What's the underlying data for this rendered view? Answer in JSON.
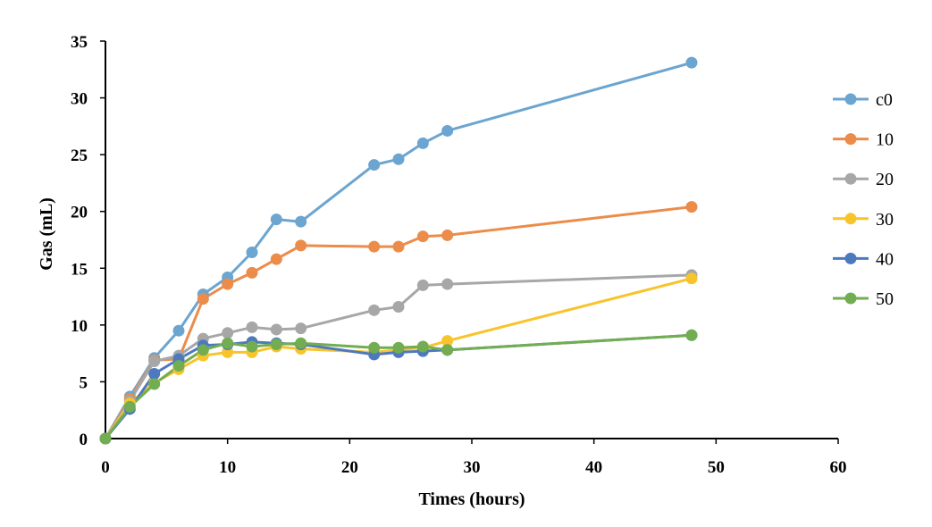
{
  "chart_data": {
    "type": "line",
    "title": "",
    "xlabel": "Times (hours)",
    "ylabel": "Gas (mL)",
    "xlim": [
      0,
      60
    ],
    "ylim": [
      0,
      35
    ],
    "xticks": [
      0,
      10,
      20,
      30,
      40,
      50,
      60
    ],
    "yticks": [
      0,
      5,
      10,
      15,
      20,
      25,
      30,
      35
    ],
    "xtick_labels": [
      "0",
      "10",
      "20",
      "30",
      "40",
      "50",
      "60"
    ],
    "ytick_labels": [
      "0",
      "5",
      "10",
      "15",
      "20",
      "25",
      "30",
      "35"
    ],
    "grid": false,
    "legend_position": "right",
    "x": [
      0,
      2,
      4,
      6,
      8,
      10,
      12,
      14,
      16,
      22,
      24,
      26,
      28,
      48
    ],
    "series": [
      {
        "name": "c0",
        "color": "#6BA5D0",
        "values": [
          0,
          3.7,
          7.1,
          9.5,
          12.7,
          14.2,
          16.4,
          19.3,
          19.1,
          24.1,
          24.6,
          26.0,
          27.1,
          33.1
        ]
      },
      {
        "name": "10",
        "color": "#EC8C4B",
        "values": [
          0,
          3.5,
          6.9,
          7.0,
          12.3,
          13.6,
          14.6,
          15.8,
          17.0,
          16.9,
          16.9,
          17.8,
          17.9,
          20.4
        ]
      },
      {
        "name": "20",
        "color": "#A7A7A7",
        "values": [
          0,
          3.3,
          6.8,
          7.3,
          8.8,
          9.3,
          9.8,
          9.6,
          9.7,
          11.3,
          11.6,
          13.5,
          13.6,
          14.4
        ]
      },
      {
        "name": "30",
        "color": "#F8C42C",
        "values": [
          0,
          3.1,
          4.9,
          6.1,
          7.3,
          7.6,
          7.6,
          8.1,
          7.9,
          7.6,
          7.8,
          8.0,
          8.6,
          14.1
        ]
      },
      {
        "name": "40",
        "color": "#4D79BE",
        "values": [
          0,
          2.6,
          5.7,
          7.0,
          8.2,
          8.3,
          8.5,
          8.4,
          8.3,
          7.4,
          7.6,
          7.7,
          7.8,
          9.1
        ]
      },
      {
        "name": "50",
        "color": "#72AD52",
        "values": [
          0,
          2.8,
          4.8,
          6.4,
          7.8,
          8.4,
          8.1,
          8.3,
          8.4,
          8.0,
          8.0,
          8.1,
          7.8,
          9.1
        ]
      }
    ]
  }
}
